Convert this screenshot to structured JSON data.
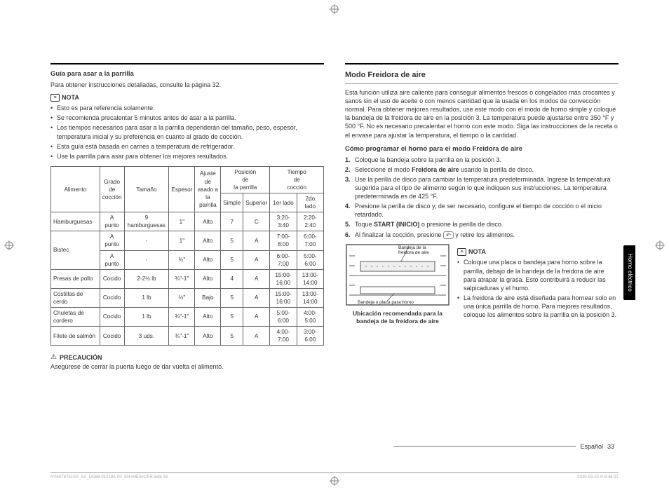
{
  "left": {
    "section_title": "Guía para asar a la parrilla",
    "intro": "Para obtener instrucciones detalladas, consulte la página 32.",
    "note_label": "NOTA",
    "notes": [
      "Esto es para referencia solamente.",
      "Se recomienda precalentar 5 minutos antes de asar a la parrilla.",
      "Los tiempos necesarios para asar a la parrilla dependerán del tamaño, peso, espesor, temperatura inicial y su preferencia en cuanto al grado de cocción.",
      "Esta guía está basada en carnes a temperatura de refrigerador.",
      "Use la parrilla para asar para obtener los mejores resultados."
    ],
    "table": {
      "head_row1": [
        "Alimento",
        "Grado de cocción",
        "Tamaño",
        "Espesor",
        "Ajuste de asado a la parrilla",
        "Posición de la parrilla",
        "Tiempo de cocción"
      ],
      "head_row2_pos": [
        "Simple",
        "Superior"
      ],
      "head_row2_time": [
        "1er lado",
        "2do lado"
      ],
      "rows": [
        {
          "food": "Hamburguesas",
          "grade": "A punto",
          "size": "9 hamburguesas",
          "thick": "1\"",
          "setting": "Alto",
          "simple": "7",
          "sup": "C",
          "t1": "3:20-3:40",
          "t2": "2:20-2:40"
        },
        {
          "food": "Bistec",
          "grade": "A punto",
          "size": "-",
          "thick": "1\"",
          "setting": "Alto",
          "simple": "5",
          "sup": "A",
          "t1": "7:00-8:00",
          "t2": "6:00-7:00",
          "rowspan_food": 2
        },
        {
          "food": "",
          "grade": "A punto",
          "size": "-",
          "thick": "¾\"",
          "setting": "Alto",
          "simple": "5",
          "sup": "A",
          "t1": "6:00-7:00",
          "t2": "5:00-6:00"
        },
        {
          "food": "Presas de pollo",
          "grade": "Cocido",
          "size": "2-2½ lb",
          "thick": "¾\"-1\"",
          "setting": "Alto",
          "simple": "4",
          "sup": "A",
          "t1": "15:00-16:00",
          "t2": "13:00-14:00"
        },
        {
          "food": "Costillas de cerdo",
          "grade": "Cocido",
          "size": "1 lb",
          "thick": "½\"",
          "setting": "Bajo",
          "simple": "5",
          "sup": "A",
          "t1": "15:00-16:00",
          "t2": "13:00-14:00"
        },
        {
          "food": "Chuletas de cordero",
          "grade": "Cocido",
          "size": "1 lb",
          "thick": "¾\"-1\"",
          "setting": "Alto",
          "simple": "5",
          "sup": "A",
          "t1": "5:00-6:00",
          "t2": "4:00-5:00"
        },
        {
          "food": "Filete de salmón",
          "grade": "Cocido",
          "size": "3 uds.",
          "thick": "¾\"-1\"",
          "setting": "Alto",
          "simple": "5",
          "sup": "A",
          "t1": "4:00-7:00",
          "t2": "3:00-6:00"
        }
      ]
    },
    "caution_label": "PRECAUCIÓN",
    "caution_text": "Asegúrese de cerrar la puerta luego de dar vuelta el alimento."
  },
  "right": {
    "main_title": "Modo Freidora de aire",
    "intro": "Esta función utiliza aire caliente para conseguir alimentos frescos o congelados más crocantes y sanos sin el uso de aceite o con menos cantidad que la usada en los modos de convección normal. Para obtener mejores resultados, use este modo con el modo de horno simple y coloque la bandeja de la freidora de aire en la posición 3. La temperatura puede ajustarse entre 350 °F y 500 °F. No es necesario precalentar el horno con este modo. Siga las instrucciones de la receta o el envase para ajustar la temperatura, el tiempo o la cantidad.",
    "howto_title": "Cómo programar el horno para el modo Freidora de aire",
    "steps": [
      "Coloque la bandeja sobre la parrilla en la posición 3.",
      "Seleccione el modo <b>Freidora de aire</b> usando la perilla de disco.",
      "Use la perilla de disco para cambiar la temperatura predeterminada. Ingrese la temperatura sugerida para el tipo de alimento según lo que indiquen sus instrucciones. La temperatura predeterminada es de 425 °F.",
      "Presione la perilla de disco y, de ser necesario, configure el tiempo de cocción o el inicio retardado.",
      "Toque <b>START (INICIO)</b> o presione la perilla de disco.",
      "Al finalizar la cocción, presione <span class=\"return-icon\">↶</span> y retire los alimentos."
    ],
    "diagram": {
      "label_top": "Bandeja de la freidora de aire",
      "label_bottom": "Bandeja o placa para horno",
      "caption": "Ubicación recomendada para la bandeja de la freidora de aire"
    },
    "note_label": "NOTA",
    "right_notes": [
      "Coloque una placa o bandeja para horno sobre la parrilla, debajo de la bandeja de la freidora de aire para atrapar la grasa. Esto contribuirá a reducir las salpicaduras y el humo.",
      "La freidora de aire está diseñada para hornear solo en una única parrilla de horno. Para mejores resultados, coloque los alimentos sobre la parrilla en la posición 3."
    ]
  },
  "side_tab": "Horno eléctrico",
  "footer_lang": "Español",
  "footer_page": "33",
  "tiny_left": "NY63T8751SS_AA_DG68-01218A-00_EN+MES+CFR.indb   33",
  "tiny_right": "2020-03-23   ⏱ 6:46:37"
}
